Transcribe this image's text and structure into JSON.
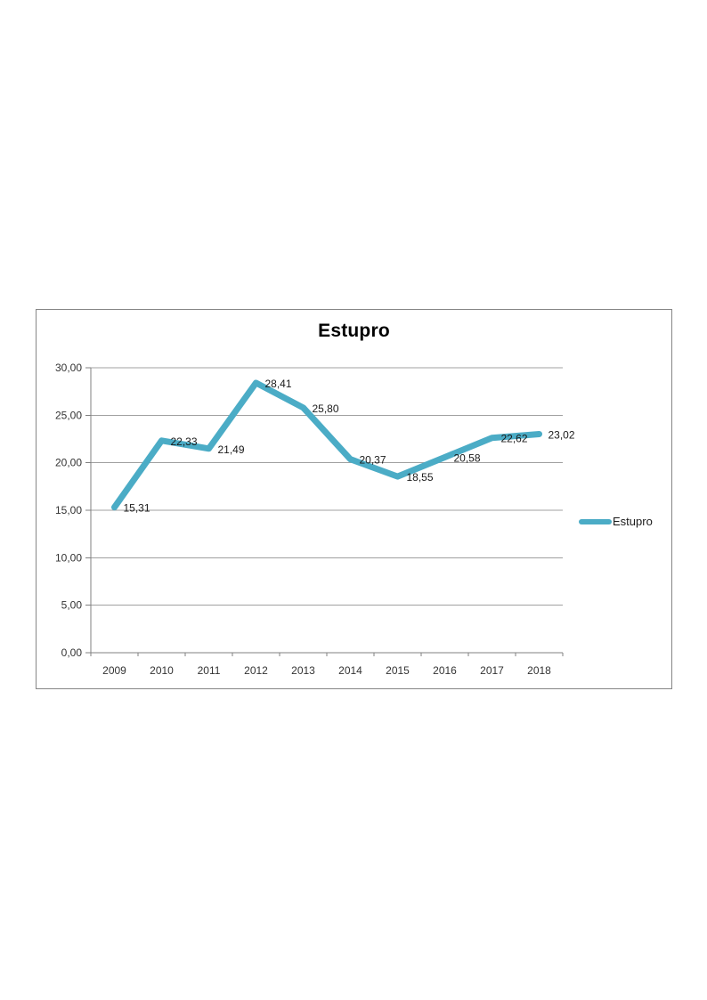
{
  "chart_data": {
    "type": "line",
    "title": "Estupro",
    "categories": [
      "2009",
      "2010",
      "2011",
      "2012",
      "2013",
      "2014",
      "2015",
      "2016",
      "2017",
      "2018"
    ],
    "series": [
      {
        "name": "Estupro",
        "values": [
          15.31,
          22.33,
          21.49,
          28.41,
          25.8,
          20.37,
          18.55,
          20.58,
          22.62,
          23.02
        ],
        "point_labels": [
          "15,31",
          "22,33",
          "21,49",
          "28,41",
          "25,80",
          "20,37",
          "18,55",
          "20,58",
          "22,62",
          "23,02"
        ]
      }
    ],
    "ylim": [
      0,
      30
    ],
    "ytick_step": 5,
    "ytick_labels": [
      "0,00",
      "5,00",
      "10,00",
      "15,00",
      "20,00",
      "25,00",
      "30,00"
    ],
    "grid": true,
    "legend_position": "right",
    "legend_label": "Estupro",
    "line_color": "#4BACC6",
    "grid_color": "#A0A0A0",
    "axis_color": "#808080",
    "line_width": 7
  }
}
